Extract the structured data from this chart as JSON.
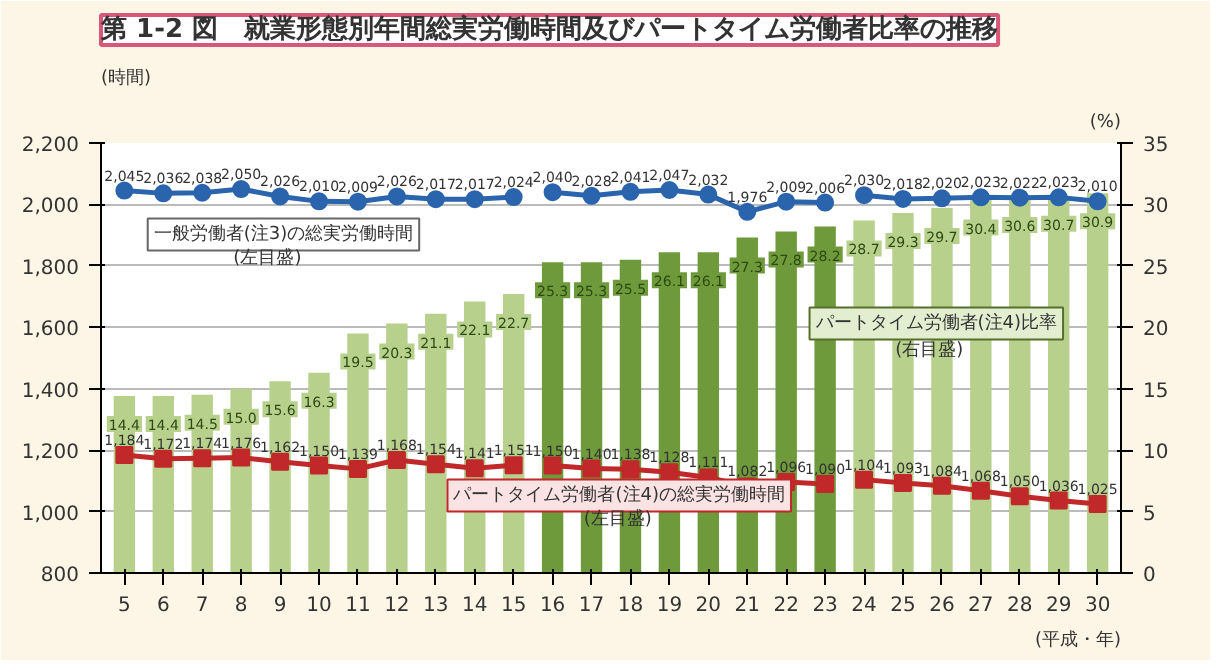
{
  "chart_data": {
    "type": "bar",
    "title": "第 1-2 図　就業形態別年間総実労働時間及びパートタイム労働者比率の推移",
    "xlabel": "(平成・年)",
    "ylabel": "(時間)",
    "y2label": "(%)",
    "categories": [
      "5",
      "6",
      "7",
      "8",
      "9",
      "10",
      "11",
      "12",
      "13",
      "14",
      "15",
      "16",
      "17",
      "18",
      "19",
      "20",
      "21",
      "22",
      "23",
      "24",
      "25",
      "26",
      "27",
      "28",
      "29",
      "30"
    ],
    "ylim": [
      800,
      2200
    ],
    "yticks": [
      {
        "value": 800,
        "label": "800"
      },
      {
        "value": 1000,
        "label": "1,000"
      },
      {
        "value": 1200,
        "label": "1,200"
      },
      {
        "value": 1400,
        "label": "1,400"
      },
      {
        "value": 1600,
        "label": "1,600"
      },
      {
        "value": 1800,
        "label": "1,800"
      },
      {
        "value": 2000,
        "label": "2,000"
      },
      {
        "value": 2200,
        "label": "2,200"
      }
    ],
    "y2lim": [
      0,
      35
    ],
    "y2ticks": [
      0,
      5,
      10,
      15,
      20,
      25,
      30,
      35
    ],
    "grid": "y",
    "data_labels": true,
    "series": [
      {
        "axis": "y2",
        "colors": [
          "#b7d08c",
          "#b7d08c",
          "#b7d08c",
          "#b7d08c",
          "#b7d08c",
          "#b7d08c",
          "#b7d08c",
          "#b7d08c",
          "#b7d08c",
          "#b7d08c",
          "#b7d08c",
          "#6e9a3c",
          "#6e9a3c",
          "#6e9a3c",
          "#6e9a3c",
          "#6e9a3c",
          "#6e9a3c",
          "#6e9a3c",
          "#6e9a3c",
          "#b7d08c",
          "#b7d08c",
          "#b7d08c",
          "#b7d08c",
          "#b7d08c",
          "#b7d08c",
          "#b7d08c"
        ],
        "values": [
          14.4,
          14.4,
          14.5,
          15.0,
          15.6,
          16.3,
          19.5,
          20.3,
          21.1,
          22.1,
          22.7,
          25.3,
          25.3,
          25.5,
          26.1,
          26.1,
          27.3,
          27.8,
          28.2,
          28.7,
          29.3,
          29.7,
          30.4,
          30.6,
          30.7,
          30.9
        ],
        "value_labels": [
          "14.4",
          "14.4",
          "14.5",
          "15.0",
          "15.6",
          "16.3",
          "19.5",
          "20.3",
          "21.1",
          "22.1",
          "22.7",
          "25.3",
          "25.3",
          "25.5",
          "26.1",
          "26.1",
          "27.3",
          "27.8",
          "28.2",
          "28.7",
          "29.3",
          "29.7",
          "30.4",
          "30.6",
          "30.7",
          "30.9"
        ]
      },
      {
        "type": "line",
        "axis": "y",
        "color": "#2a64ad",
        "marker": "circle",
        "x": [
          "5",
          "6",
          "7",
          "8",
          "9",
          "10",
          "11",
          "12",
          "13",
          "14",
          "15"
        ],
        "values": [
          2045,
          2036,
          2038,
          2050,
          2026,
          2010,
          2009,
          2026,
          2017,
          2017,
          2024
        ],
        "value_labels": [
          "2,045",
          "2,036",
          "2,038",
          "2,050",
          "2,026",
          "2,010",
          "2,009",
          "2,026",
          "2,017",
          "2,017",
          "2,024"
        ]
      },
      {
        "type": "line",
        "axis": "y",
        "color": "#2a64ad",
        "marker": "circle",
        "x": [
          "16",
          "17",
          "18",
          "19",
          "20",
          "21",
          "22",
          "23"
        ],
        "values": [
          2040,
          2028,
          2041,
          2047,
          2032,
          1976,
          2009,
          2006
        ],
        "value_labels": [
          "2,040",
          "2,028",
          "2,041",
          "2,047",
          "2,032",
          "1,976",
          "2,009",
          "2,006"
        ]
      },
      {
        "type": "line",
        "axis": "y",
        "color": "#2a64ad",
        "marker": "circle",
        "x": [
          "24",
          "25",
          "26",
          "27",
          "28",
          "29",
          "30"
        ],
        "values": [
          2030,
          2018,
          2020,
          2023,
          2022,
          2023,
          2010
        ],
        "value_labels": [
          "2,030",
          "2,018",
          "2,020",
          "2,023",
          "2,022",
          "2,023",
          "2,010"
        ]
      },
      {
        "type": "line",
        "axis": "y",
        "color": "#c0282a",
        "marker": "square",
        "x": [
          "5",
          "6",
          "7",
          "8",
          "9",
          "10",
          "11",
          "12",
          "13",
          "14",
          "15"
        ],
        "values": [
          1184,
          1172,
          1174,
          1176,
          1162,
          1150,
          1139,
          1168,
          1154,
          1141,
          1151
        ],
        "value_labels": [
          "1,184",
          "1,172",
          "1,174",
          "1,176",
          "1,162",
          "1,150",
          "1,139",
          "1,168",
          "1,154",
          "1,141",
          "1,151"
        ]
      },
      {
        "type": "line",
        "axis": "y",
        "color": "#c0282a",
        "marker": "square",
        "x": [
          "16",
          "17",
          "18",
          "19",
          "20",
          "21",
          "22",
          "23"
        ],
        "values": [
          1150,
          1140,
          1138,
          1128,
          1111,
          1082,
          1096,
          1090
        ],
        "value_labels": [
          "1,150",
          "1,140",
          "1,138",
          "1,128",
          "1,111",
          "1,082",
          "1,096",
          "1,090"
        ]
      },
      {
        "type": "line",
        "axis": "y",
        "color": "#c0282a",
        "marker": "square",
        "x": [
          "24",
          "25",
          "26",
          "27",
          "28",
          "29",
          "30"
        ],
        "values": [
          1104,
          1093,
          1084,
          1068,
          1050,
          1036,
          1025
        ],
        "value_labels": [
          "1,104",
          "1,093",
          "1,084",
          "1,068",
          "1,050",
          "1,036",
          "1,025"
        ]
      }
    ],
    "annotations": [
      "一般労働者(注3)の総実労働時間",
      "(左目盛)",
      "パートタイム労働者(注4)比率",
      "(右目盛)",
      "パートタイム労働者(注4)の総実労働時間",
      "(左目盛)"
    ]
  }
}
